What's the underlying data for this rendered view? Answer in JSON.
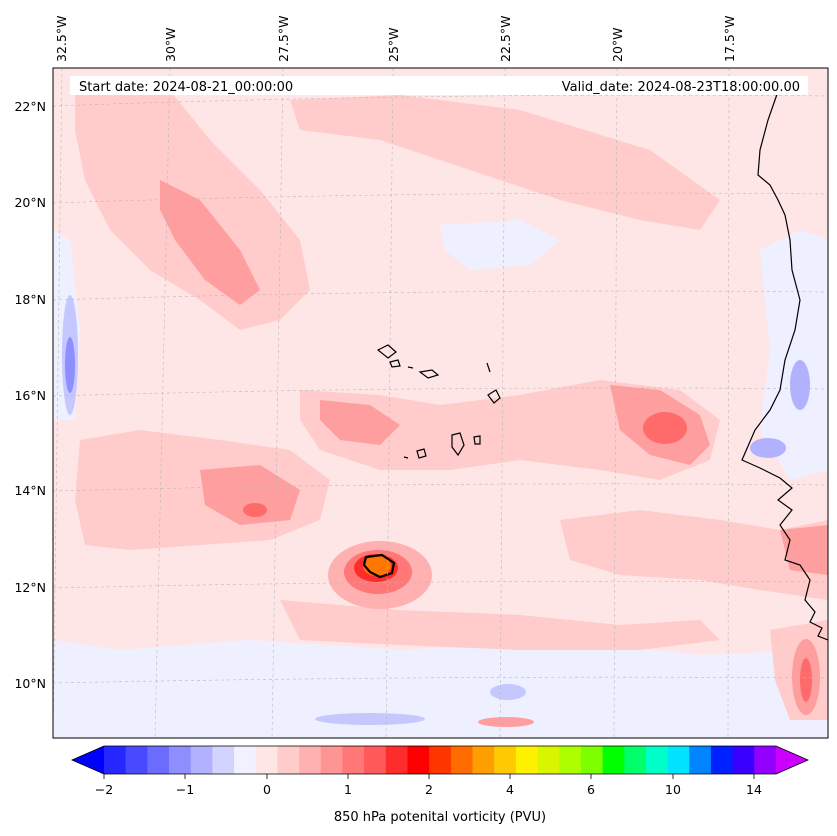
{
  "map": {
    "start_label": "Start date: 2024-08-21_00:00:00",
    "valid_label": "Valid_date: 2024-08-23T18:00:00.00",
    "lon_labels": [
      "32.5°W",
      "30°W",
      "27.5°W",
      "25°W",
      "22.5°W",
      "20°W",
      "17.5°W"
    ],
    "lat_labels": [
      "22°N",
      "20°N",
      "18°N",
      "16°N",
      "14°N",
      "12°N",
      "10°N"
    ]
  },
  "colorbar": {
    "title": "850 hPa potenital vorticity (PVU)",
    "tick_labels": [
      "−2",
      "−1",
      "0",
      "1",
      "2",
      "4",
      "6",
      "10",
      "14"
    ],
    "colors": [
      "#2727ff",
      "#4949ff",
      "#6c6cff",
      "#8e8eff",
      "#b1b1ff",
      "#d3d3ff",
      "#f1f1ff",
      "#ffe6e6",
      "#ffcbcb",
      "#ffb1b1",
      "#ff9494",
      "#ff7777",
      "#ff5959",
      "#ff2c2c",
      "#ff0000",
      "#ff3600",
      "#ff6c00",
      "#ff9e00",
      "#ffcb00",
      "#fff200",
      "#daf500",
      "#adff00",
      "#7dff00",
      "#00ff00",
      "#00ff68",
      "#00ffc8",
      "#00e4ff",
      "#0085ff",
      "#0021ff",
      "#3a00ff",
      "#9400ff"
    ],
    "under_color": "#0000ff",
    "over_color": "#cc00ff"
  },
  "colors": {
    "background_pv": "#ffe6e6",
    "light_red": "#ffcbcb",
    "mid_red": "#ff9e9e",
    "deep_red": "#ff6b6b",
    "negative_blue": "#eef0ff",
    "mid_blue": "#c4c8ff",
    "core_orange": "#ff7700",
    "coast": "#000000"
  }
}
